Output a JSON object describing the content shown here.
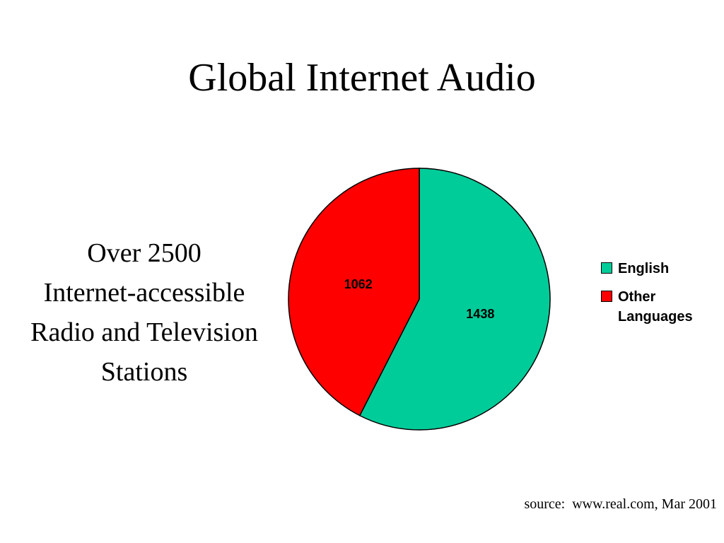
{
  "title": "Global Internet Audio",
  "side_text": {
    "lines": [
      "Over 2500",
      "Internet-accessible",
      "Radio and Television",
      "Stations"
    ]
  },
  "source_note": "source:  www.real.com, Mar 2001",
  "colors": {
    "english": "#00CC99",
    "other_languages": "#FF0000",
    "outline": "#000000"
  },
  "chart_data": {
    "type": "pie",
    "categories": [
      "English",
      "Other Languages"
    ],
    "values": [
      1438,
      1062
    ],
    "data_labels": [
      "1438",
      "1062"
    ],
    "legend": {
      "entries": [
        "English",
        "Other Languages"
      ],
      "placement": "right"
    },
    "title": "",
    "start_angle": "12 o'clock, clockwise"
  },
  "legend_display": {
    "english": "English",
    "other_languages": "Other Languages"
  }
}
